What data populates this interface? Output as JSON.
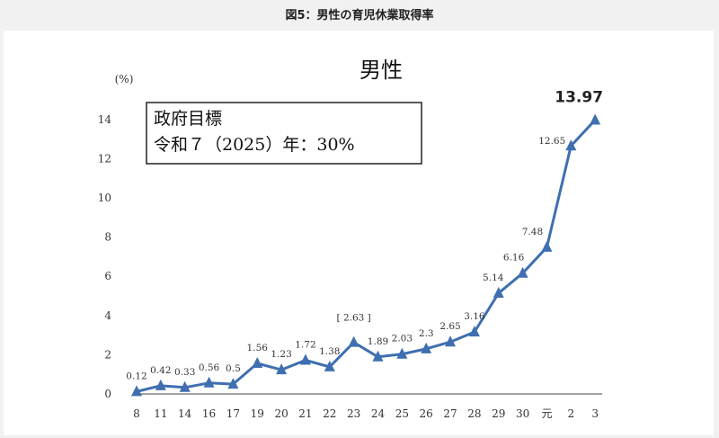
{
  "caption": "図5：男性の育児休業取得率",
  "chart_data": {
    "type": "line",
    "title": "男性",
    "ylabel": "(%)",
    "xlabel": "",
    "ylim": [
      0,
      14
    ],
    "yticks": [
      0,
      2,
      4,
      6,
      8,
      10,
      12,
      14
    ],
    "categories": [
      "8",
      "11",
      "14",
      "16",
      "17",
      "19",
      "20",
      "21",
      "22",
      "23",
      "24",
      "25",
      "26",
      "27",
      "28",
      "29",
      "30",
      "元",
      "2",
      "3"
    ],
    "series": [
      {
        "name": "男性",
        "color": "#3f6fb0",
        "values": [
          0.12,
          0.42,
          0.33,
          0.56,
          0.5,
          1.56,
          1.23,
          1.72,
          1.38,
          2.63,
          1.89,
          2.03,
          2.3,
          2.65,
          3.16,
          5.14,
          6.16,
          7.48,
          12.65,
          13.97
        ]
      }
    ],
    "data_labels": [
      "0.12",
      "0.42",
      "0.33",
      "0.56",
      "0.5",
      "1.56",
      "1.23",
      "1.72",
      "1.38",
      "[ 2.63 ]",
      "1.89",
      "2.03",
      "2.3",
      "2.65",
      "3.16",
      "5.14",
      "6.16",
      "7.48",
      "12.65",
      "13.97"
    ],
    "annotation": {
      "line1": "政府目標",
      "line2": "令和７（2025）年：30%"
    }
  }
}
